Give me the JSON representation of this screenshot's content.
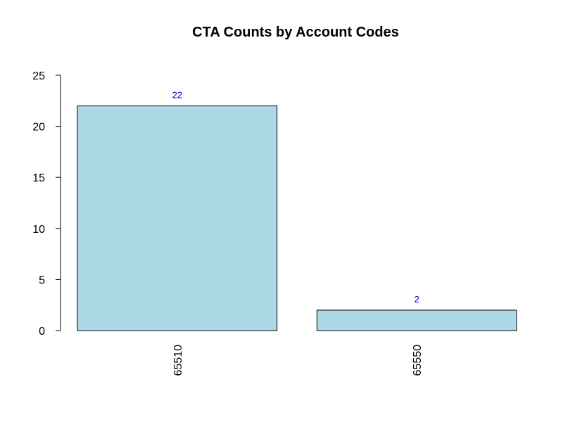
{
  "chart_data": {
    "type": "bar",
    "title": "CTA Counts by Account Codes",
    "xlabel": "",
    "ylabel": "",
    "categories": [
      "65510",
      "65550"
    ],
    "values": [
      22,
      2
    ],
    "data_labels": [
      "22",
      "2"
    ],
    "ylim": [
      0,
      25
    ],
    "yticks": [
      0,
      5,
      10,
      15,
      20,
      25
    ],
    "ytick_labels": [
      "0",
      "5",
      "10",
      "15",
      "20",
      "25"
    ],
    "x_tick_label_orientation": "vertical",
    "grid": false,
    "legend": "none",
    "colors": {
      "bar_fill": "#add8e6",
      "bar_stroke": "#000000",
      "data_label": "#0000cc"
    }
  }
}
